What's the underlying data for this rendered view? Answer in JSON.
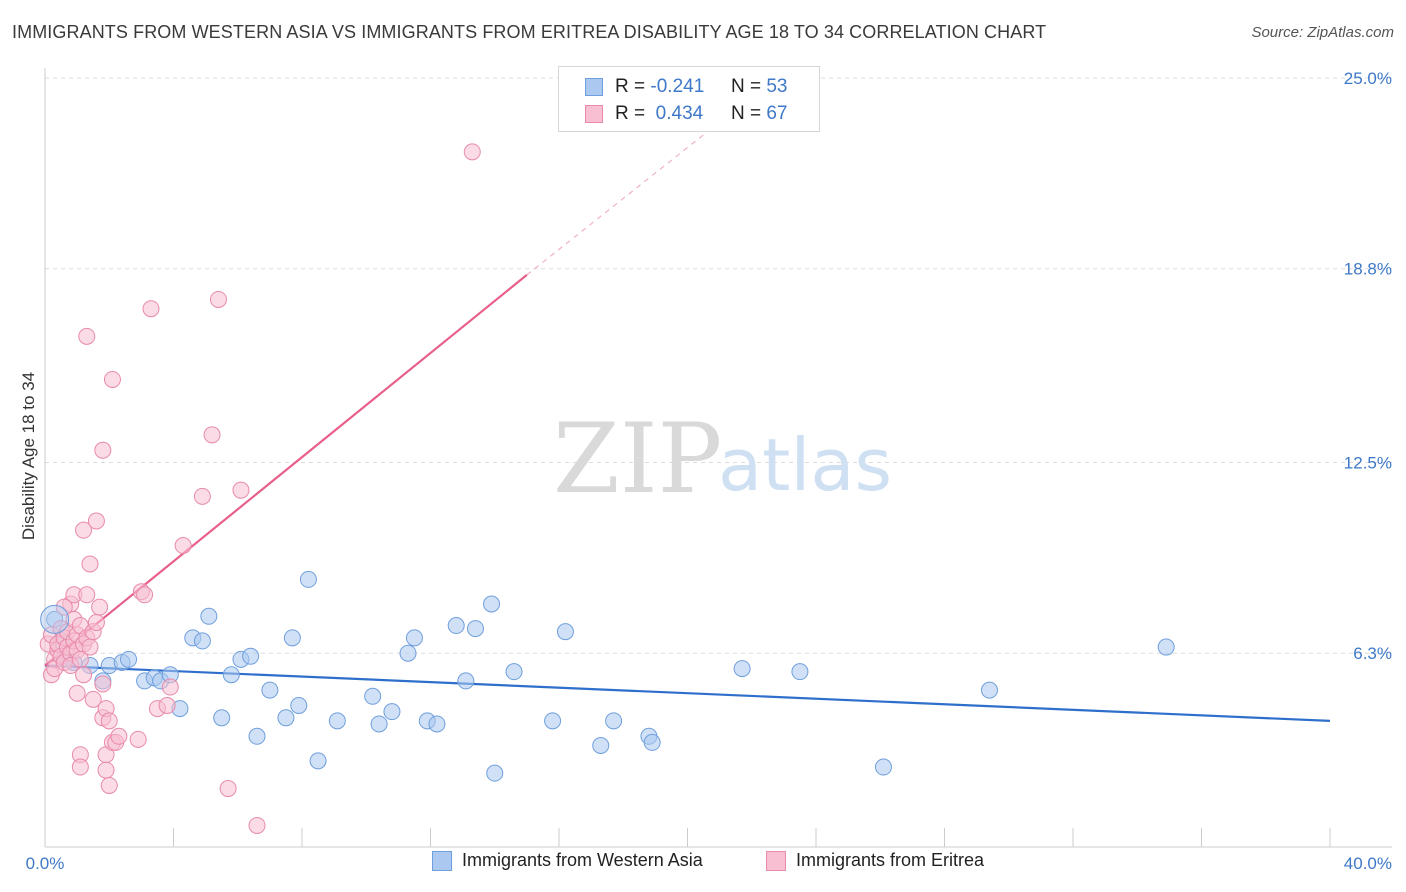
{
  "title": "IMMIGRANTS FROM WESTERN ASIA VS IMMIGRANTS FROM ERITREA DISABILITY AGE 18 TO 34 CORRELATION CHART",
  "source": "Source: ZipAtlas.com",
  "watermark": {
    "zip": "ZIP",
    "atlas": "atlas"
  },
  "legend": {
    "rows": [
      {
        "r_label": "R =",
        "r_value": "-0.241",
        "n_label": "N =",
        "n_value": "53",
        "color": "#aac8f0",
        "border": "#6f9fdc"
      },
      {
        "r_label": "R =",
        "r_value": " 0.434",
        "n_label": "N =",
        "n_value": "67",
        "color": "#f8bfd2",
        "border": "#e88aab"
      }
    ]
  },
  "bottom_legend": [
    {
      "label": "Immigrants from Western Asia",
      "color": "#aac8f0",
      "border": "#6f9fdc"
    },
    {
      "label": "Immigrants from Eritrea",
      "color": "#f8bfd2",
      "border": "#e88aab"
    }
  ],
  "chart_data": {
    "type": "scatter",
    "title": "IMMIGRANTS FROM WESTERN ASIA VS IMMIGRANTS FROM ERITREA DISABILITY AGE 18 TO 34 CORRELATION CHART",
    "xlabel": "",
    "ylabel": "Disability Age 18 to 34",
    "xlim": [
      0,
      40
    ],
    "ylim": [
      0,
      25.0
    ],
    "x_tick_labels": [
      "0.0%",
      "40.0%"
    ],
    "y_ticks": [
      6.3,
      12.5,
      18.8,
      25.0
    ],
    "y_tick_labels": [
      "6.3%",
      "12.5%",
      "18.8%",
      "25.0%"
    ],
    "grid": true,
    "series": [
      {
        "name": "Immigrants from Western Asia",
        "color": "#6f9fdc",
        "fill": "#aac8f0",
        "trend": {
          "x": [
            0.0,
            40.0
          ],
          "y": [
            5.9,
            4.1
          ],
          "color": "#2f6fcc"
        },
        "points": [
          {
            "x": 0.3,
            "y": 7.4
          },
          {
            "x": 0.5,
            "y": 6.7
          },
          {
            "x": 0.6,
            "y": 6.1
          },
          {
            "x": 0.9,
            "y": 6.0
          },
          {
            "x": 1.4,
            "y": 5.9
          },
          {
            "x": 1.8,
            "y": 5.4
          },
          {
            "x": 2.0,
            "y": 5.9
          },
          {
            "x": 2.4,
            "y": 6.0
          },
          {
            "x": 2.6,
            "y": 6.1
          },
          {
            "x": 3.1,
            "y": 5.4
          },
          {
            "x": 3.4,
            "y": 5.5
          },
          {
            "x": 3.6,
            "y": 5.4
          },
          {
            "x": 3.9,
            "y": 5.6
          },
          {
            "x": 4.2,
            "y": 4.5
          },
          {
            "x": 4.6,
            "y": 6.8
          },
          {
            "x": 4.9,
            "y": 6.7
          },
          {
            "x": 5.1,
            "y": 7.5
          },
          {
            "x": 5.5,
            "y": 4.2
          },
          {
            "x": 5.8,
            "y": 5.6
          },
          {
            "x": 6.1,
            "y": 6.1
          },
          {
            "x": 6.4,
            "y": 6.2
          },
          {
            "x": 6.6,
            "y": 3.6
          },
          {
            "x": 7.0,
            "y": 5.1
          },
          {
            "x": 7.5,
            "y": 4.2
          },
          {
            "x": 7.7,
            "y": 6.8
          },
          {
            "x": 7.9,
            "y": 4.6
          },
          {
            "x": 8.2,
            "y": 8.7
          },
          {
            "x": 8.5,
            "y": 2.8
          },
          {
            "x": 9.1,
            "y": 4.1
          },
          {
            "x": 10.2,
            "y": 4.9
          },
          {
            "x": 10.4,
            "y": 4.0
          },
          {
            "x": 10.8,
            "y": 4.4
          },
          {
            "x": 11.3,
            "y": 6.3
          },
          {
            "x": 11.5,
            "y": 6.8
          },
          {
            "x": 11.9,
            "y": 4.1
          },
          {
            "x": 12.2,
            "y": 4.0
          },
          {
            "x": 12.8,
            "y": 7.2
          },
          {
            "x": 13.1,
            "y": 5.4
          },
          {
            "x": 13.4,
            "y": 7.1
          },
          {
            "x": 13.9,
            "y": 7.9
          },
          {
            "x": 14.0,
            "y": 2.4
          },
          {
            "x": 14.6,
            "y": 5.7
          },
          {
            "x": 15.8,
            "y": 4.1
          },
          {
            "x": 16.2,
            "y": 7.0
          },
          {
            "x": 17.3,
            "y": 3.3
          },
          {
            "x": 17.7,
            "y": 4.1
          },
          {
            "x": 18.8,
            "y": 3.6
          },
          {
            "x": 18.9,
            "y": 3.4
          },
          {
            "x": 21.7,
            "y": 5.8
          },
          {
            "x": 23.5,
            "y": 5.7
          },
          {
            "x": 26.1,
            "y": 2.6
          },
          {
            "x": 29.4,
            "y": 5.1
          },
          {
            "x": 34.9,
            "y": 6.5
          }
        ]
      },
      {
        "name": "Immigrants from Eritrea",
        "color": "#e88aab",
        "fill": "#f8bfd2",
        "trend": {
          "x": [
            0.0,
            15.0
          ],
          "y": [
            5.9,
            18.6
          ],
          "dashed_to": {
            "x": 21.4,
            "y": 23.9
          },
          "color": "#e8608a"
        },
        "points": [
          {
            "x": 0.1,
            "y": 6.6
          },
          {
            "x": 0.2,
            "y": 5.6
          },
          {
            "x": 0.2,
            "y": 6.9
          },
          {
            "x": 0.3,
            "y": 6.1
          },
          {
            "x": 0.3,
            "y": 5.8
          },
          {
            "x": 0.4,
            "y": 6.4
          },
          {
            "x": 0.4,
            "y": 6.6
          },
          {
            "x": 0.5,
            "y": 7.1
          },
          {
            "x": 0.5,
            "y": 6.2
          },
          {
            "x": 0.6,
            "y": 6.8
          },
          {
            "x": 0.6,
            "y": 6.0
          },
          {
            "x": 0.7,
            "y": 6.5
          },
          {
            "x": 0.7,
            "y": 7.0
          },
          {
            "x": 0.8,
            "y": 6.3
          },
          {
            "x": 0.8,
            "y": 5.9
          },
          {
            "x": 0.9,
            "y": 6.7
          },
          {
            "x": 0.9,
            "y": 7.4
          },
          {
            "x": 1.0,
            "y": 6.4
          },
          {
            "x": 1.0,
            "y": 6.9
          },
          {
            "x": 1.1,
            "y": 6.1
          },
          {
            "x": 1.1,
            "y": 7.2
          },
          {
            "x": 1.2,
            "y": 6.6
          },
          {
            "x": 1.2,
            "y": 5.6
          },
          {
            "x": 1.3,
            "y": 6.8
          },
          {
            "x": 1.4,
            "y": 6.5
          },
          {
            "x": 1.5,
            "y": 7.0
          },
          {
            "x": 1.6,
            "y": 7.3
          },
          {
            "x": 1.7,
            "y": 7.8
          },
          {
            "x": 0.8,
            "y": 7.9
          },
          {
            "x": 0.9,
            "y": 8.2
          },
          {
            "x": 0.6,
            "y": 7.8
          },
          {
            "x": 1.3,
            "y": 8.2
          },
          {
            "x": 1.4,
            "y": 9.2
          },
          {
            "x": 1.2,
            "y": 10.3
          },
          {
            "x": 1.6,
            "y": 10.6
          },
          {
            "x": 1.8,
            "y": 4.2
          },
          {
            "x": 1.5,
            "y": 4.8
          },
          {
            "x": 1.9,
            "y": 4.5
          },
          {
            "x": 1.9,
            "y": 3.0
          },
          {
            "x": 2.1,
            "y": 3.4
          },
          {
            "x": 1.8,
            "y": 5.3
          },
          {
            "x": 1.0,
            "y": 5.0
          },
          {
            "x": 2.0,
            "y": 4.1
          },
          {
            "x": 2.2,
            "y": 3.4
          },
          {
            "x": 2.3,
            "y": 3.6
          },
          {
            "x": 1.1,
            "y": 3.0
          },
          {
            "x": 1.1,
            "y": 2.6
          },
          {
            "x": 1.9,
            "y": 2.5
          },
          {
            "x": 2.0,
            "y": 2.0
          },
          {
            "x": 2.9,
            "y": 3.5
          },
          {
            "x": 3.5,
            "y": 4.5
          },
          {
            "x": 3.8,
            "y": 4.6
          },
          {
            "x": 3.9,
            "y": 5.2
          },
          {
            "x": 3.0,
            "y": 8.3
          },
          {
            "x": 3.1,
            "y": 8.2
          },
          {
            "x": 4.3,
            "y": 9.8
          },
          {
            "x": 4.9,
            "y": 11.4
          },
          {
            "x": 5.2,
            "y": 13.4
          },
          {
            "x": 5.4,
            "y": 17.8
          },
          {
            "x": 3.3,
            "y": 17.5
          },
          {
            "x": 1.3,
            "y": 16.6
          },
          {
            "x": 2.1,
            "y": 15.2
          },
          {
            "x": 1.8,
            "y": 12.9
          },
          {
            "x": 6.1,
            "y": 11.6
          },
          {
            "x": 13.3,
            "y": 22.6
          },
          {
            "x": 5.7,
            "y": 1.9
          },
          {
            "x": 6.6,
            "y": 0.7
          }
        ]
      }
    ]
  }
}
